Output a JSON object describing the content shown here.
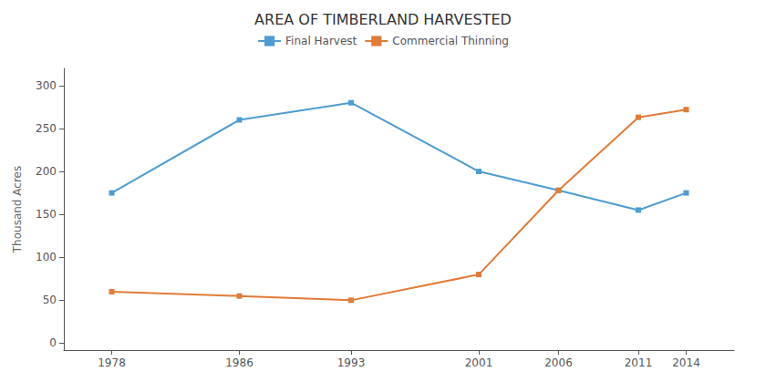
{
  "chart_data": {
    "type": "line",
    "title": "AREA OF TIMBERLAND HARVESTED",
    "ylabel": "Thousand Acres",
    "x": [
      1978,
      1986,
      1993,
      2001,
      2006,
      2011,
      2014
    ],
    "series": [
      {
        "name": "Final Harvest",
        "color": "#4e9cd0",
        "values": [
          175,
          260,
          280,
          200,
          178,
          155,
          175
        ]
      },
      {
        "name": "Commercial Thinning",
        "color": "#e07b39",
        "values": [
          60,
          55,
          50,
          80,
          178,
          263,
          272
        ]
      }
    ],
    "xlim": [
      1975,
      2017
    ],
    "xticks": [
      1978,
      1986,
      1993,
      2001,
      2006,
      2011,
      2014
    ],
    "ylim": [
      -8,
      320
    ],
    "yticks": [
      0,
      50,
      100,
      150,
      200,
      250,
      300
    ],
    "grid": false,
    "legend": "top",
    "marker": "square"
  }
}
